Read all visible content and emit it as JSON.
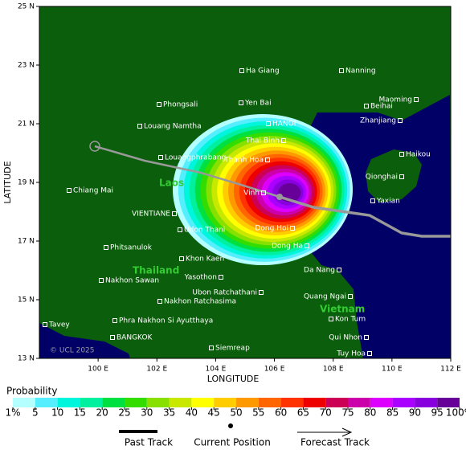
{
  "map": {
    "axes": {
      "x_label": "LONGITUDE",
      "y_label": "LATITUDE",
      "xlim": [
        98,
        112
      ],
      "ylim": [
        13,
        25
      ],
      "xticks": [
        {
          "value": 100,
          "label": "100 E"
        },
        {
          "value": 102,
          "label": "102 E"
        },
        {
          "value": 104,
          "label": "104 E"
        },
        {
          "value": 106,
          "label": "106 E"
        },
        {
          "value": 108,
          "label": "108 E"
        },
        {
          "value": 110,
          "label": "110 E"
        },
        {
          "value": 112,
          "label": "112 E"
        }
      ],
      "yticks": [
        {
          "value": 13,
          "label": "13 N"
        },
        {
          "value": 15,
          "label": "15 N"
        },
        {
          "value": 17,
          "label": "17 N"
        },
        {
          "value": 19,
          "label": "19 N"
        },
        {
          "value": 21,
          "label": "21 N"
        },
        {
          "value": 23,
          "label": "23 N"
        },
        {
          "value": 25,
          "label": "25 N"
        }
      ]
    },
    "places": [
      "Ha Giang",
      "Nanning",
      "Maoming",
      "Phongsali",
      "Yen Bai",
      "Beihai",
      "Louang Namtha",
      "HANOI",
      "Zhanjiang",
      "Thai Binh",
      "Louangphrabang",
      "Haikou",
      "Thanh Hoa",
      "Qionghai",
      "Chiang Mai",
      "Vinh",
      "VIENTIANE",
      "Yaxian",
      "Udon Thani",
      "Dong Hoi",
      "Phitsanulok",
      "Dong Ha",
      "Khon Kaen",
      "Da Nang",
      "Nakhon Sawan",
      "Yasothon",
      "Ubon Ratchathani",
      "Nakhon Ratchasima",
      "Quang Ngai",
      "Phra Nakhon Si Ayutthaya",
      "Kon Tum",
      "Tavey",
      "BANGKOK",
      "Qui Nhon",
      "Siemreap",
      "Tuy Hoa"
    ],
    "countries": [
      "Laos",
      "Thailand",
      "Vietnam"
    ],
    "copyright": "© UCL 2025"
  },
  "legend": {
    "title": "Probability",
    "levels": [
      {
        "value": 1,
        "label": "1%"
      },
      5,
      10,
      15,
      20,
      25,
      30,
      35,
      40,
      45,
      50,
      55,
      60,
      65,
      70,
      75,
      80,
      85,
      90,
      95,
      {
        "value": 100,
        "label": "100%"
      }
    ],
    "colors": [
      "#b4ffff",
      "#55eeff",
      "#00f5dd",
      "#00f0a0",
      "#00e040",
      "#33dd00",
      "#88e000",
      "#c8e800",
      "#ffff00",
      "#ffcc00",
      "#ff9900",
      "#ff6600",
      "#ff3300",
      "#ee0000",
      "#cc0055",
      "#cc00aa",
      "#dd00ff",
      "#aa00ff",
      "#8800dd",
      "#660099"
    ],
    "past_track": "Past Track",
    "current_position": "Current Position",
    "forecast_track": "Forecast Track"
  }
}
